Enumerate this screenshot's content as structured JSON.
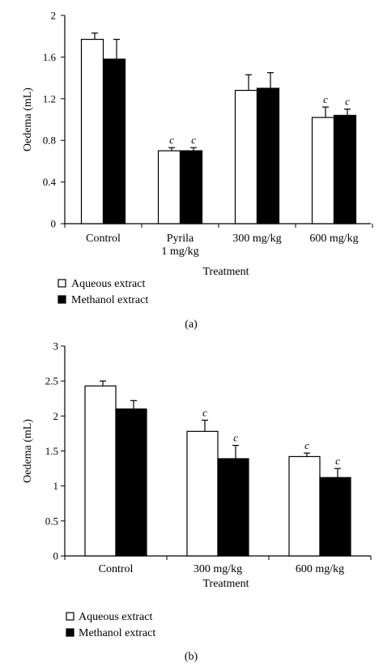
{
  "chart_data": [
    {
      "panel": "(a)",
      "type": "bar",
      "categories": [
        [
          "Control"
        ],
        [
          "Pyrila",
          "1 mg/kg"
        ],
        [
          "300 mg/kg"
        ],
        [
          "600 mg/kg"
        ]
      ],
      "series": [
        {
          "name": "Aqueous extract",
          "color": "#ffffff",
          "values": [
            1.77,
            0.7,
            1.28,
            1.02
          ],
          "errors": [
            0.06,
            0.03,
            0.15,
            0.1
          ]
        },
        {
          "name": "Methanol extract",
          "color": "#000000",
          "values": [
            1.58,
            0.7,
            1.3,
            1.04
          ],
          "errors": [
            0.19,
            0.03,
            0.15,
            0.06
          ]
        }
      ],
      "significance": [
        [
          "",
          "c",
          "",
          "c"
        ],
        [
          "",
          "c",
          "",
          "c"
        ]
      ],
      "xlabel": "Treatment",
      "ylabel": "Oedema (mL)",
      "ylim": [
        0,
        2
      ],
      "yticks": [
        "0",
        "0.4",
        "0.8",
        "1.2",
        "1.6",
        "2"
      ],
      "grid": false,
      "legend": "bottom-left"
    },
    {
      "panel": "(b)",
      "type": "bar",
      "categories": [
        [
          "Control"
        ],
        [
          "300 mg/kg"
        ],
        [
          "600 mg/kg"
        ]
      ],
      "series": [
        {
          "name": "Aqueous extract",
          "color": "#ffffff",
          "values": [
            2.43,
            1.78,
            1.42
          ],
          "errors": [
            0.07,
            0.16,
            0.05
          ]
        },
        {
          "name": "Methanol extract",
          "color": "#000000",
          "values": [
            2.1,
            1.39,
            1.12
          ],
          "errors": [
            0.12,
            0.19,
            0.13
          ]
        }
      ],
      "significance": [
        [
          "",
          "c",
          "c"
        ],
        [
          "",
          "c",
          "c"
        ]
      ],
      "xlabel": "Treatment",
      "ylabel": "Oedema (mL)",
      "ylim": [
        0,
        3
      ],
      "yticks": [
        "0",
        "0.5",
        "1",
        "1.5",
        "2",
        "2.5",
        "3"
      ],
      "grid": false,
      "legend": "bottom-left"
    }
  ]
}
